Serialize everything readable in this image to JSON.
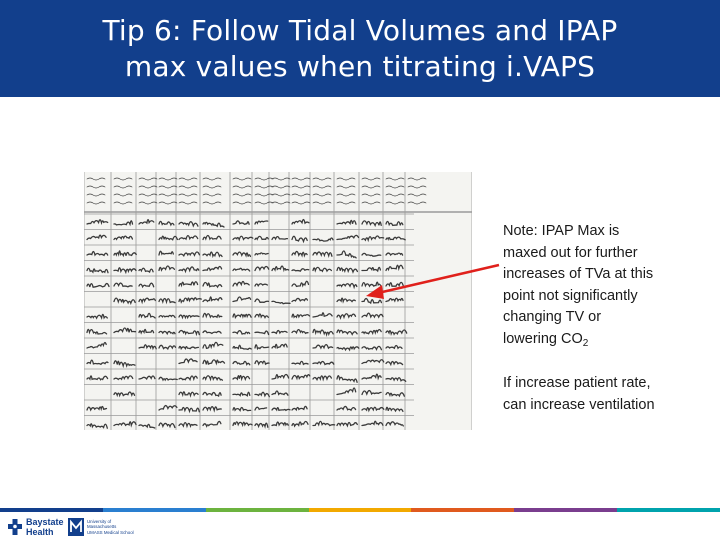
{
  "slide": {
    "title_line1": "Tip 6: Follow Tidal Volumes and IPAP",
    "title_line2": "max values when titrating i.VAPS",
    "note_lines": [
      "Note: IPAP Max is",
      "maxed out for further",
      "increases of TVa at this",
      "point not significantly",
      "changing TV or",
      "lowering CO"
    ],
    "note_subscript": "2",
    "note2_lines": [
      "If increase patient rate,",
      "can increase ventilation"
    ]
  },
  "colors": {
    "title_bg": "#123f8c",
    "arrow": "#e0201b",
    "stripe": [
      "#123f8c",
      "#2a7fd0",
      "#6cb33f",
      "#f2a900",
      "#e05a1e",
      "#7a3d8e",
      "#00a3ad"
    ]
  },
  "footer": {
    "baystate_line1": "Baystate",
    "baystate_line2": "Health",
    "umass_line1": "University of",
    "umass_line2": "Massachusetts",
    "umass_line3": "UMASS Medical School"
  },
  "icons": {
    "arrow": "red-arrow",
    "baystate": "baystate-logo-icon",
    "umass": "umass-logo-icon"
  }
}
